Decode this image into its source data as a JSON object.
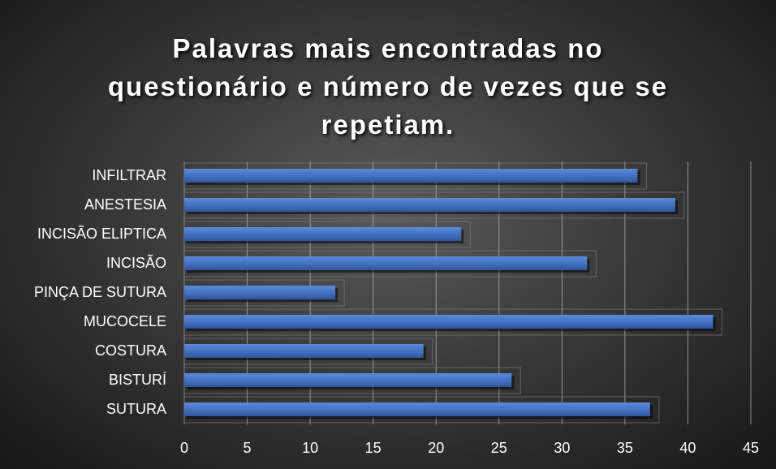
{
  "chart_data": {
    "type": "bar",
    "orientation": "horizontal",
    "title": "Palavras mais encontradas no questionário e número de vezes que se repetiam.",
    "categories": [
      "INFILTRAR",
      "ANESTESIA",
      "INCISÃO ELIPTICA",
      "INCISÃO",
      "PINÇA DE SUTURA",
      "MUCOCELE",
      "COSTURA",
      "BISTURÍ",
      "SUTURA"
    ],
    "values": [
      36,
      39,
      22,
      32,
      12,
      42,
      19,
      26,
      37
    ],
    "color": "#4472c4",
    "xlim": [
      0,
      45
    ],
    "xticks": [
      0,
      5,
      10,
      15,
      20,
      25,
      30,
      35,
      40,
      45
    ],
    "grid": true
  }
}
